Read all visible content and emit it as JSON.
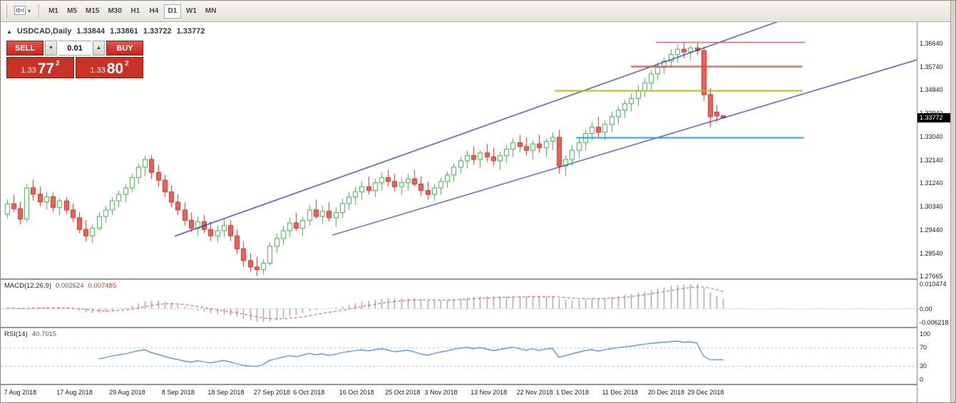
{
  "icons": {
    "caret_down": "▾",
    "spinner_down": "▼",
    "spinner_up": "▲",
    "symbol_marker": "▲"
  },
  "toolbar": {
    "timeframes": [
      "M1",
      "M5",
      "M15",
      "M30",
      "H1",
      "H4",
      "D1",
      "W1",
      "MN"
    ],
    "active_timeframe": "D1"
  },
  "chart_header": {
    "symbol": "USDCAD,Daily",
    "open": "1.33844",
    "high": "1.33861",
    "low": "1.33722",
    "close": "1.33772"
  },
  "one_click": {
    "sell_label": "SELL",
    "buy_label": "BUY",
    "volume": "0.01",
    "sell_price": {
      "prefix": "1.33",
      "big": "77",
      "sup": "2"
    },
    "buy_price": {
      "prefix": "1.33",
      "big": "80",
      "sup": "2"
    }
  },
  "price_axis": {
    "labels": [
      "1.36640",
      "1.35740",
      "1.34840",
      "1.33940",
      "1.33040",
      "1.32140",
      "1.31240",
      "1.30340",
      "1.29440",
      "1.28540",
      "1.27665"
    ],
    "current_price": "1.33772"
  },
  "date_axis": {
    "labels": [
      {
        "text": "7 Aug 2018",
        "i": 0
      },
      {
        "text": "17 Aug 2018",
        "i": 8
      },
      {
        "text": "29 Aug 2018",
        "i": 16
      },
      {
        "text": "8 Sep 2018",
        "i": 24
      },
      {
        "text": "18 Sep 2018",
        "i": 31
      },
      {
        "text": "27 Sep 2018",
        "i": 38
      },
      {
        "text": "6 Oct 2018",
        "i": 44
      },
      {
        "text": "16 Oct 2018",
        "i": 51
      },
      {
        "text": "25 Oct 2018",
        "i": 58
      },
      {
        "text": "3 Nov 2018",
        "i": 64
      },
      {
        "text": "13 Nov 2018",
        "i": 71
      },
      {
        "text": "22 Nov 2018",
        "i": 78
      },
      {
        "text": "1 Dec 2018",
        "i": 84
      },
      {
        "text": "11 Dec 2018",
        "i": 91
      },
      {
        "text": "20 Dec 2018",
        "i": 98
      },
      {
        "text": "29 Dec 2018",
        "i": 104
      }
    ]
  },
  "macd_panel": {
    "label": "MACD(12,26,9)",
    "value_main": "0.002624",
    "value_signal": "0.007485",
    "axis_labels": [
      "0.010474",
      "0.00",
      "-0.006218"
    ],
    "fast": 12,
    "slow": 26,
    "signal": 9
  },
  "rsi_panel": {
    "label": "RSI(14)",
    "value": "40.7015",
    "period": 14,
    "axis_labels": [
      "100",
      "70",
      "30",
      "0"
    ],
    "levels": [
      70,
      30
    ]
  },
  "chart_data": {
    "type": "candlestick",
    "symbol": "USDCAD",
    "timeframe": "Daily",
    "price_max": 1.3746,
    "price_min": 1.2757,
    "colors": {
      "up_fill": "#ffffff",
      "up_stroke": "#3fa54a",
      "down_fill": "#ee6157",
      "down_stroke": "#b93229",
      "channel": "#2a2a9e",
      "histogram": "#a0a0a0",
      "signal_line": "#d23b3b",
      "rsi_line": "#3f7cc1",
      "rsi_level": "#9fc0dd"
    },
    "overlays": {
      "channel_lines": [
        {
          "x1": 0.19,
          "p1": 1.292,
          "x2": 0.85,
          "p2": 1.375
        },
        {
          "x1": 0.362,
          "p1": 1.2924,
          "x2": 1.0,
          "p2": 1.36
        }
      ],
      "hlines": [
        {
          "price": 1.3668,
          "x1": 0.715,
          "x2": 0.878,
          "color": "#f05050",
          "width": 1.3
        },
        {
          "price": 1.3575,
          "x1": 0.688,
          "x2": 0.875,
          "color": "#e84040",
          "width": 2
        },
        {
          "price": 1.3483,
          "x1": 0.605,
          "x2": 0.875,
          "color": "#b4b80a",
          "width": 2
        },
        {
          "price": 1.3301,
          "x1": 0.628,
          "x2": 0.877,
          "color": "#2f96dc",
          "width": 2
        }
      ]
    },
    "candles": [
      [
        1.3005,
        1.3062,
        1.2988,
        1.3045
      ],
      [
        1.3045,
        1.3078,
        1.3012,
        1.3026
      ],
      [
        1.3026,
        1.3052,
        1.2965,
        1.2986
      ],
      [
        1.2986,
        1.3122,
        1.2975,
        1.3106
      ],
      [
        1.3106,
        1.3138,
        1.3058,
        1.3082
      ],
      [
        1.3082,
        1.3112,
        1.3035,
        1.3052
      ],
      [
        1.3052,
        1.3092,
        1.3022,
        1.3072
      ],
      [
        1.3072,
        1.3088,
        1.3014,
        1.3031
      ],
      [
        1.3031,
        1.3067,
        1.3001,
        1.3056
      ],
      [
        1.3056,
        1.3071,
        1.3004,
        1.3021
      ],
      [
        1.3021,
        1.3046,
        1.2974,
        1.2991
      ],
      [
        1.2991,
        1.3012,
        1.2931,
        1.2946
      ],
      [
        1.2946,
        1.2982,
        1.2899,
        1.2921
      ],
      [
        1.2921,
        1.2966,
        1.2893,
        1.2951
      ],
      [
        1.2951,
        1.3012,
        1.2941,
        1.2996
      ],
      [
        1.2996,
        1.3036,
        1.2971,
        1.3021
      ],
      [
        1.3021,
        1.3071,
        1.3001,
        1.3056
      ],
      [
        1.3056,
        1.3096,
        1.3031,
        1.3081
      ],
      [
        1.3081,
        1.3121,
        1.3051,
        1.3106
      ],
      [
        1.3106,
        1.3161,
        1.3091,
        1.3146
      ],
      [
        1.3146,
        1.3201,
        1.3121,
        1.3186
      ],
      [
        1.3186,
        1.3231,
        1.3151,
        1.3216
      ],
      [
        1.3216,
        1.3232,
        1.3141,
        1.3166
      ],
      [
        1.3166,
        1.3196,
        1.3111,
        1.3136
      ],
      [
        1.3136,
        1.3156,
        1.3071,
        1.3091
      ],
      [
        1.3091,
        1.3116,
        1.3031,
        1.3051
      ],
      [
        1.3051,
        1.3081,
        1.3001,
        1.3021
      ],
      [
        1.3021,
        1.3051,
        1.2961,
        1.2981
      ],
      [
        1.2981,
        1.3011,
        1.2936,
        1.2951
      ],
      [
        1.2951,
        1.2996,
        1.2921,
        1.2976
      ],
      [
        1.2976,
        1.3001,
        1.2931,
        1.2946
      ],
      [
        1.2946,
        1.2976,
        1.2901,
        1.2921
      ],
      [
        1.2921,
        1.2961,
        1.2896,
        1.2941
      ],
      [
        1.2941,
        1.2986,
        1.2916,
        1.2961
      ],
      [
        1.2961,
        1.2981,
        1.2901,
        1.2921
      ],
      [
        1.2921,
        1.2946,
        1.2851,
        1.2871
      ],
      [
        1.2871,
        1.2901,
        1.2801,
        1.2826
      ],
      [
        1.2826,
        1.2856,
        1.2781,
        1.2801
      ],
      [
        1.2801,
        1.2841,
        1.2766,
        1.2791
      ],
      [
        1.2791,
        1.2831,
        1.2771,
        1.2816
      ],
      [
        1.2816,
        1.2896,
        1.2806,
        1.2881
      ],
      [
        1.2881,
        1.2931,
        1.2856,
        1.2911
      ],
      [
        1.2911,
        1.2961,
        1.2886,
        1.2941
      ],
      [
        1.2941,
        1.2991,
        1.2916,
        1.2971
      ],
      [
        1.2971,
        1.3011,
        1.2941,
        1.2951
      ],
      [
        1.2951,
        1.2996,
        1.2921,
        1.2981
      ],
      [
        1.2981,
        1.3041,
        1.2961,
        1.3021
      ],
      [
        1.3021,
        1.3061,
        1.2986,
        1.2996
      ],
      [
        1.2996,
        1.3036,
        1.2966,
        1.3016
      ],
      [
        1.3016,
        1.3051,
        1.2976,
        1.2991
      ],
      [
        1.2991,
        1.3031,
        1.2956,
        1.3011
      ],
      [
        1.3011,
        1.3066,
        1.2991,
        1.3046
      ],
      [
        1.3046,
        1.3091,
        1.3021,
        1.3071
      ],
      [
        1.3071,
        1.3111,
        1.3041,
        1.3091
      ],
      [
        1.3091,
        1.3131,
        1.3061,
        1.3111
      ],
      [
        1.3111,
        1.3151,
        1.3081,
        1.3096
      ],
      [
        1.3096,
        1.3141,
        1.3071,
        1.3126
      ],
      [
        1.3126,
        1.3166,
        1.3096,
        1.3146
      ],
      [
        1.3146,
        1.3176,
        1.3111,
        1.3131
      ],
      [
        1.3131,
        1.3161,
        1.3091,
        1.3111
      ],
      [
        1.3111,
        1.3146,
        1.3081,
        1.3126
      ],
      [
        1.3126,
        1.3161,
        1.3096,
        1.3141
      ],
      [
        1.3141,
        1.3176,
        1.3111,
        1.3121
      ],
      [
        1.3121,
        1.3151,
        1.3076,
        1.3096
      ],
      [
        1.3096,
        1.3131,
        1.3061,
        1.3081
      ],
      [
        1.3081,
        1.3121,
        1.3056,
        1.3106
      ],
      [
        1.3106,
        1.3146,
        1.3081,
        1.3131
      ],
      [
        1.3131,
        1.3171,
        1.3106,
        1.3156
      ],
      [
        1.3156,
        1.3201,
        1.3131,
        1.3186
      ],
      [
        1.3186,
        1.3226,
        1.3161,
        1.3211
      ],
      [
        1.3211,
        1.3251,
        1.3181,
        1.3231
      ],
      [
        1.3231,
        1.3266,
        1.3196,
        1.3216
      ],
      [
        1.3216,
        1.3251,
        1.3181,
        1.3241
      ],
      [
        1.3241,
        1.3276,
        1.3206,
        1.3226
      ],
      [
        1.3226,
        1.3261,
        1.3191,
        1.3211
      ],
      [
        1.3211,
        1.3246,
        1.3176,
        1.3231
      ],
      [
        1.3231,
        1.3271,
        1.3201,
        1.3256
      ],
      [
        1.3256,
        1.3296,
        1.3226,
        1.3281
      ],
      [
        1.3281,
        1.3311,
        1.3246,
        1.3266
      ],
      [
        1.3266,
        1.3301,
        1.3231,
        1.3251
      ],
      [
        1.3251,
        1.3291,
        1.3216,
        1.3276
      ],
      [
        1.3276,
        1.3311,
        1.3241,
        1.3261
      ],
      [
        1.3261,
        1.3296,
        1.3226,
        1.3286
      ],
      [
        1.3286,
        1.3321,
        1.3251,
        1.3301
      ],
      [
        1.3301,
        1.3331,
        1.3161,
        1.3191
      ],
      [
        1.3191,
        1.3231,
        1.3151,
        1.3216
      ],
      [
        1.3216,
        1.3271,
        1.3191,
        1.3251
      ],
      [
        1.3251,
        1.3301,
        1.3221,
        1.3281
      ],
      [
        1.3281,
        1.3331,
        1.3251,
        1.3316
      ],
      [
        1.3316,
        1.3361,
        1.3291,
        1.3341
      ],
      [
        1.3341,
        1.3381,
        1.3301,
        1.3321
      ],
      [
        1.3321,
        1.3366,
        1.3291,
        1.3351
      ],
      [
        1.3351,
        1.3401,
        1.3321,
        1.3381
      ],
      [
        1.3381,
        1.3421,
        1.3351,
        1.3406
      ],
      [
        1.3406,
        1.3446,
        1.3376,
        1.3431
      ],
      [
        1.3431,
        1.3471,
        1.3401,
        1.3451
      ],
      [
        1.3451,
        1.3501,
        1.3421,
        1.3481
      ],
      [
        1.3481,
        1.3531,
        1.3456,
        1.3511
      ],
      [
        1.3511,
        1.3561,
        1.3486,
        1.3546
      ],
      [
        1.3546,
        1.3591,
        1.3521,
        1.3571
      ],
      [
        1.3571,
        1.3611,
        1.3546,
        1.3596
      ],
      [
        1.3596,
        1.3641,
        1.3571,
        1.3621
      ],
      [
        1.3621,
        1.3661,
        1.3591,
        1.3641
      ],
      [
        1.3641,
        1.3666,
        1.3606,
        1.3631
      ],
      [
        1.3631,
        1.3656,
        1.3601,
        1.3646
      ],
      [
        1.3646,
        1.3664,
        1.3621,
        1.3636
      ],
      [
        1.3636,
        1.3651,
        1.3441,
        1.3466
      ],
      [
        1.3466,
        1.3491,
        1.3341,
        1.3381
      ],
      [
        1.3398,
        1.3425,
        1.336,
        1.3384
      ],
      [
        1.33844,
        1.33861,
        1.33722,
        1.33772
      ]
    ]
  }
}
